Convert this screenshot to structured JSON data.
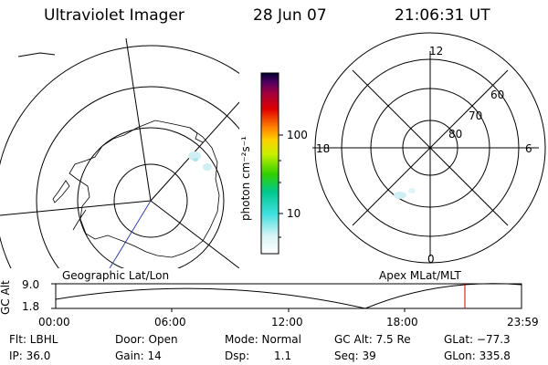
{
  "header": {
    "title": "Ultraviolet Imager",
    "date": "28 Jun 07",
    "time": "21:06:31 UT"
  },
  "colorbar": {
    "unit_label": "photon cm⁻²s⁻¹",
    "tick_100": "100",
    "tick_10": "10"
  },
  "maps": {
    "left_label": "Geographic Lat/Lon",
    "right_label": "Apex MLat/MLT",
    "mlt_12": "12",
    "mlt_18": "18",
    "mlt_6": "6",
    "mlt_0": "0",
    "lat_60": "60",
    "lat_70": "70",
    "lat_80": "80"
  },
  "altitude_plot": {
    "axis_label": "GC Alt",
    "y_max": "9.0",
    "y_min": "1.8",
    "times": [
      "00:00",
      "06:00",
      "12:00",
      "18:00",
      "23:59"
    ],
    "marker_color": "#cc0000"
  },
  "footer": {
    "flt": "Flt: LBHL",
    "door": "Door: Open",
    "mode": "Mode: Normal",
    "gc_alt": "GC Alt: 7.5 Re",
    "glat": "GLat: −77.3",
    "ip": "IP: 36.0",
    "gain": "Gain: 14",
    "dsp_label": "Dsp:",
    "dsp_value": "1.1",
    "seq": "Seq: 39",
    "glon": "GLon: 335.8"
  }
}
